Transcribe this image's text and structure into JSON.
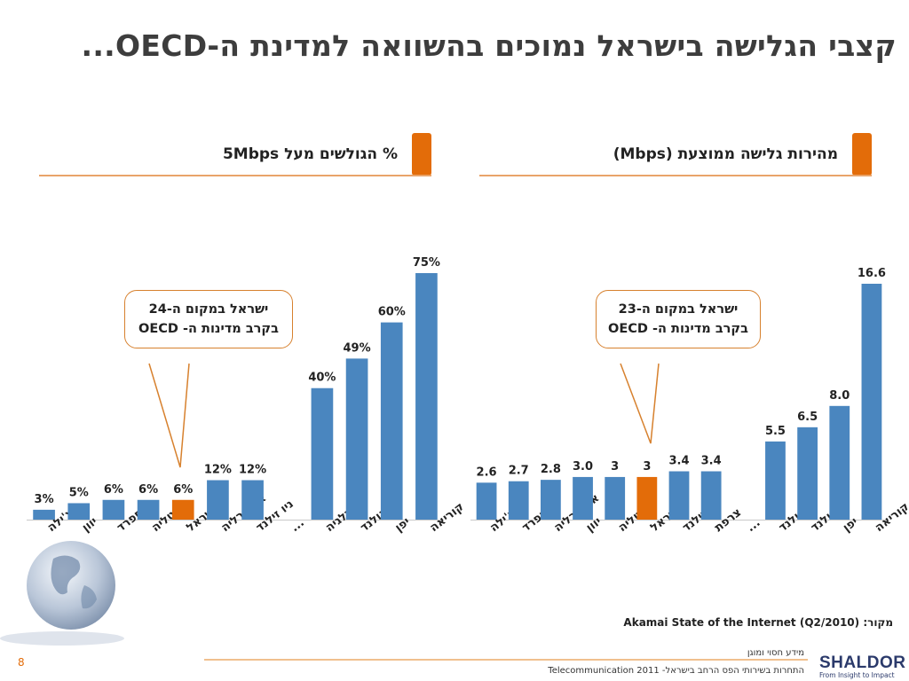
{
  "title": "קצבי הגלישה בישראל נמוכים בהשוואה למדינת ה-OECD...",
  "left_panel": {
    "header": "% הגולשים מעל 5Mbps",
    "callout_line1": "ישראל במקום ה-24",
    "callout_line2": "בקרב מדינות ה- OECD"
  },
  "right_panel": {
    "header": "מהירות גלישה ממוצעת (Mbps)",
    "callout_line1": "ישראל במקום ה-23",
    "callout_line2": "בקרב מדינות ה- OECD"
  },
  "source": "מקור: Akamai State of the Internet (Q2/2010)",
  "footer_top": "מידע חסוי ומוגן",
  "footer_bottom": "התחרות בשירותי הפס הרחב בישראל- Telecommunication 2011",
  "page_number": "8",
  "logo": {
    "name": "SHALDOR",
    "tagline": "From Insight to Impact"
  },
  "colors": {
    "bar": "#4a86bf",
    "highlight": "#e36c09",
    "accent": "#e36c09"
  },
  "chart_data": [
    {
      "type": "bar",
      "title": "% הגולשים מעל 5Mbps",
      "categories": [
        "צ'ילה",
        "יוון",
        "ספרד",
        "איטליה",
        "ישראל",
        "אוסטרליה",
        "ניו זילנד",
        "...",
        "בלגיה",
        "הולנד",
        "יפן",
        "קוריאה"
      ],
      "values": [
        3,
        5,
        6,
        6,
        6,
        12,
        12,
        null,
        40,
        49,
        60,
        75
      ],
      "labels": [
        "3%",
        "5%",
        "6%",
        "6%",
        "6%",
        "12%",
        "12%",
        "",
        "40%",
        "49%",
        "60%",
        "75%"
      ],
      "highlight_index": 4,
      "ylim": [
        0,
        75
      ]
    },
    {
      "type": "bar",
      "title": "מהירות גלישה ממוצעת (Mbps)",
      "categories": [
        "צ'ילה",
        "ספרד",
        "אוסטרליה",
        "יוון",
        "איטליה",
        "ישראל",
        "ניו זילנד",
        "צרפת",
        "...",
        "הולנד",
        "הולנד",
        "יפן",
        "קוריאה"
      ],
      "values": [
        2.6,
        2.7,
        2.8,
        3.0,
        3,
        3,
        3.4,
        3.4,
        null,
        5.5,
        6.5,
        8.0,
        16.6
      ],
      "labels": [
        "2.6",
        "2.7",
        "2.8",
        "3.0",
        "3",
        "3",
        "3.4",
        "3.4",
        "",
        "5.5",
        "6.5",
        "8.0",
        "16.6"
      ],
      "highlight_index": 5,
      "ylim": [
        0,
        16.6
      ]
    }
  ]
}
